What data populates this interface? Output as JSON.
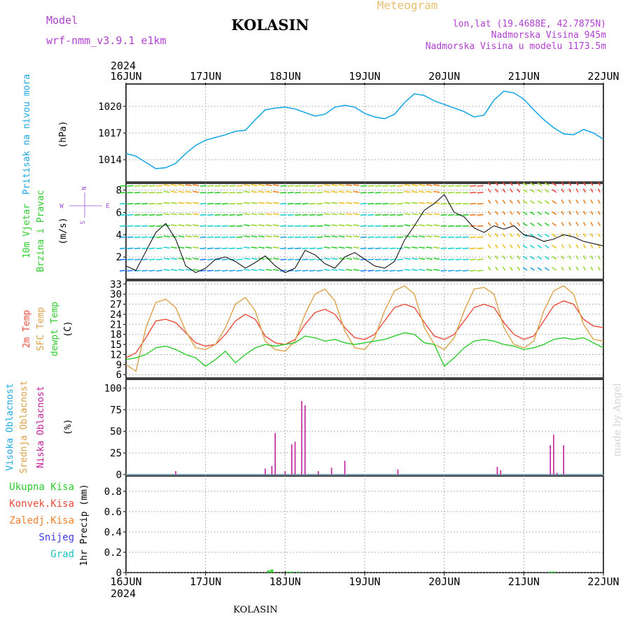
{
  "header": {
    "model_label": "Model",
    "model_name": "wrf-nmm_v3.9.1 e1km",
    "station": "KOLASIN",
    "title": "Meteogram",
    "lonlat": "lon,lat (19.4688E, 42.7875N)",
    "elevation": "Nadmorska Visina 945m",
    "model_elevation": "Nadmorska Visina u modelu 1173.5m",
    "year_top": "2024",
    "year_bottom": "2024",
    "footer_station": "KOLASIN",
    "credit": "made by Angel"
  },
  "colors": {
    "pressure": "#1ea8e6",
    "temp2m": "#e84c3c",
    "sfc": "#dba24a",
    "dewpt": "#2ecc2e",
    "high_cloud": "#1ea8e6",
    "mid_cloud": "#dba24a",
    "low_cloud": "#c0209a",
    "precip_total": "#2ecc2e",
    "precip_conv": "#e84c3c",
    "precip_frz": "#f08030",
    "precip_snow": "#4040e0",
    "precip_grad": "#20c0c0",
    "header_purple": "#b040d0",
    "header_gold": "#e8c070",
    "wind_label": "#2ecc2e",
    "axis_purple": "#a050d0"
  },
  "x_axis": {
    "tick_labels": [
      "16JUN",
      "17JUN",
      "18JUN",
      "19JUN",
      "20JUN",
      "21JUN",
      "22JUN"
    ],
    "range_hours": [
      0,
      144
    ]
  },
  "panels": {
    "pressure": {
      "label": "Pritisak na nivou mora",
      "unit": "(hPa)",
      "ticks": [
        "1014",
        "1017",
        "1020"
      ]
    },
    "wind": {
      "label_1": "10m Vjetar",
      "label_2": "Brzina i Pravac",
      "unit": "(m/s)",
      "ticks": [
        "2",
        "4",
        "6",
        "8"
      ],
      "compass": {
        "n": "N",
        "s": "S",
        "w": "W",
        "e": "E"
      }
    },
    "temperature": {
      "label_1": "2m Temp",
      "label_2": "SFC Temp",
      "label_3": "dewpt Temp",
      "unit": "(C)",
      "ticks": [
        "6",
        "9",
        "12",
        "15",
        "18",
        "21",
        "24",
        "27",
        "30",
        "33"
      ]
    },
    "cloud": {
      "label_1": "Visoka Oblacnost",
      "label_2": "Srednja Oblacnost",
      "label_3": "Niska Oblacnost",
      "unit": "(%)",
      "ticks": [
        "0",
        "25",
        "50",
        "75",
        "100"
      ]
    },
    "precip": {
      "legend": [
        "Ukupna Kisa",
        "Konvek.Kisa",
        "Zaledj.Kisa",
        "Snijeg",
        "Grad"
      ],
      "unit": "1hr Precip (mm)",
      "ticks": [
        "0",
        "0.2",
        "0.4",
        "0.6",
        "0.8"
      ]
    }
  },
  "chart_data": [
    {
      "type": "line",
      "name": "pressure",
      "ylabel": "Pritisak na nivou mora (hPa)",
      "ylim": [
        1011.5,
        1022.5
      ],
      "x": [
        0,
        3,
        6,
        9,
        12,
        15,
        18,
        21,
        24,
        27,
        30,
        33,
        36,
        39,
        42,
        45,
        48,
        51,
        54,
        57,
        60,
        63,
        66,
        69,
        72,
        75,
        78,
        81,
        84,
        87,
        90,
        93,
        96,
        99,
        102,
        105,
        108,
        111,
        114,
        117,
        120,
        123,
        126,
        129,
        132,
        135,
        138,
        141,
        144
      ],
      "values": [
        1014.7,
        1014.4,
        1013.7,
        1013.0,
        1013.1,
        1013.6,
        1014.7,
        1015.6,
        1016.2,
        1016.5,
        1016.8,
        1017.2,
        1017.3,
        1018.5,
        1019.6,
        1019.8,
        1019.9,
        1019.7,
        1019.3,
        1018.9,
        1019.1,
        1019.9,
        1020.1,
        1019.9,
        1019.2,
        1018.8,
        1018.6,
        1019.1,
        1020.4,
        1021.4,
        1021.2,
        1020.6,
        1020.2,
        1019.8,
        1019.4,
        1018.8,
        1019.0,
        1020.7,
        1021.7,
        1021.5,
        1020.8,
        1019.6,
        1018.5,
        1017.6,
        1016.9,
        1016.8,
        1017.4,
        1017.0,
        1016.3
      ]
    },
    {
      "type": "line",
      "name": "temperature",
      "ylabel": "(C)",
      "ylim": [
        5,
        34
      ],
      "x": [
        0,
        3,
        6,
        9,
        12,
        15,
        18,
        21,
        24,
        27,
        30,
        33,
        36,
        39,
        42,
        45,
        48,
        51,
        54,
        57,
        60,
        63,
        66,
        69,
        72,
        75,
        78,
        81,
        84,
        87,
        90,
        93,
        96,
        99,
        102,
        105,
        108,
        111,
        114,
        117,
        120,
        123,
        126,
        129,
        132,
        135,
        138,
        141,
        144
      ],
      "series": [
        {
          "name": "2m Temp",
          "values": [
            11,
            12.5,
            17,
            22,
            22.5,
            21.5,
            18.5,
            15.5,
            14.5,
            15,
            18,
            22,
            24,
            22.5,
            17.5,
            15.5,
            15,
            16.5,
            21,
            24.5,
            25.5,
            24,
            20,
            17,
            16.5,
            18,
            22,
            26,
            27,
            26,
            21.5,
            17.5,
            16.5,
            18,
            22,
            26,
            27,
            26,
            21.5,
            18,
            16.5,
            17.5,
            22,
            26.5,
            28,
            27,
            22.5,
            20.5,
            20
          ]
        },
        {
          "name": "SFC Temp",
          "values": [
            9,
            7,
            20,
            27.5,
            28.5,
            26,
            19,
            14,
            13.5,
            15,
            20,
            27,
            29,
            25,
            16,
            13.5,
            13,
            16,
            24,
            30,
            31.5,
            28,
            19,
            14,
            13.5,
            17,
            25,
            31,
            32.5,
            30,
            20,
            15,
            13.5,
            17,
            25,
            31.5,
            32,
            30,
            20,
            15,
            14,
            16,
            25,
            31,
            32.5,
            30,
            21,
            16.5,
            16
          ]
        },
        {
          "name": "dewpt Temp",
          "values": [
            10.5,
            11,
            12,
            14,
            14.5,
            13.5,
            12,
            11,
            8.5,
            10.5,
            13,
            9.5,
            12,
            14,
            15,
            14.5,
            15,
            15.5,
            17.5,
            17,
            16,
            16.5,
            15.5,
            15,
            15.5,
            16,
            16.5,
            17.5,
            18.5,
            18,
            15.5,
            15,
            8.5,
            11,
            14,
            16,
            16.5,
            16,
            15,
            14.5,
            13.5,
            14,
            15,
            16.5,
            17,
            16.5,
            17,
            15.5,
            14
          ]
        }
      ]
    },
    {
      "type": "bar",
      "name": "cloud",
      "ylabel": "(%)",
      "ylim": [
        0,
        110
      ],
      "series": [
        {
          "name": "Niska Oblacnost",
          "x": [
            15,
            42,
            44,
            45,
            48,
            50,
            51,
            53,
            54,
            58,
            62,
            66,
            82,
            112,
            113,
            128,
            129,
            130,
            132
          ],
          "values": [
            4,
            7,
            10,
            48,
            4,
            35,
            38,
            85,
            80,
            4,
            8,
            16,
            6,
            9,
            5,
            34,
            46,
            2,
            34
          ]
        }
      ]
    },
    {
      "type": "bar",
      "name": "precip",
      "ylabel": "1hr Precip (mm)",
      "ylim": [
        0,
        0.95
      ],
      "series": [
        {
          "name": "Ukupna Kisa",
          "x": [
            43,
            44,
            49,
            50,
            52,
            128,
            129
          ],
          "values": [
            0.02,
            0.03,
            0.01,
            0.01,
            0.01,
            0.01,
            0.01
          ]
        }
      ]
    }
  ]
}
